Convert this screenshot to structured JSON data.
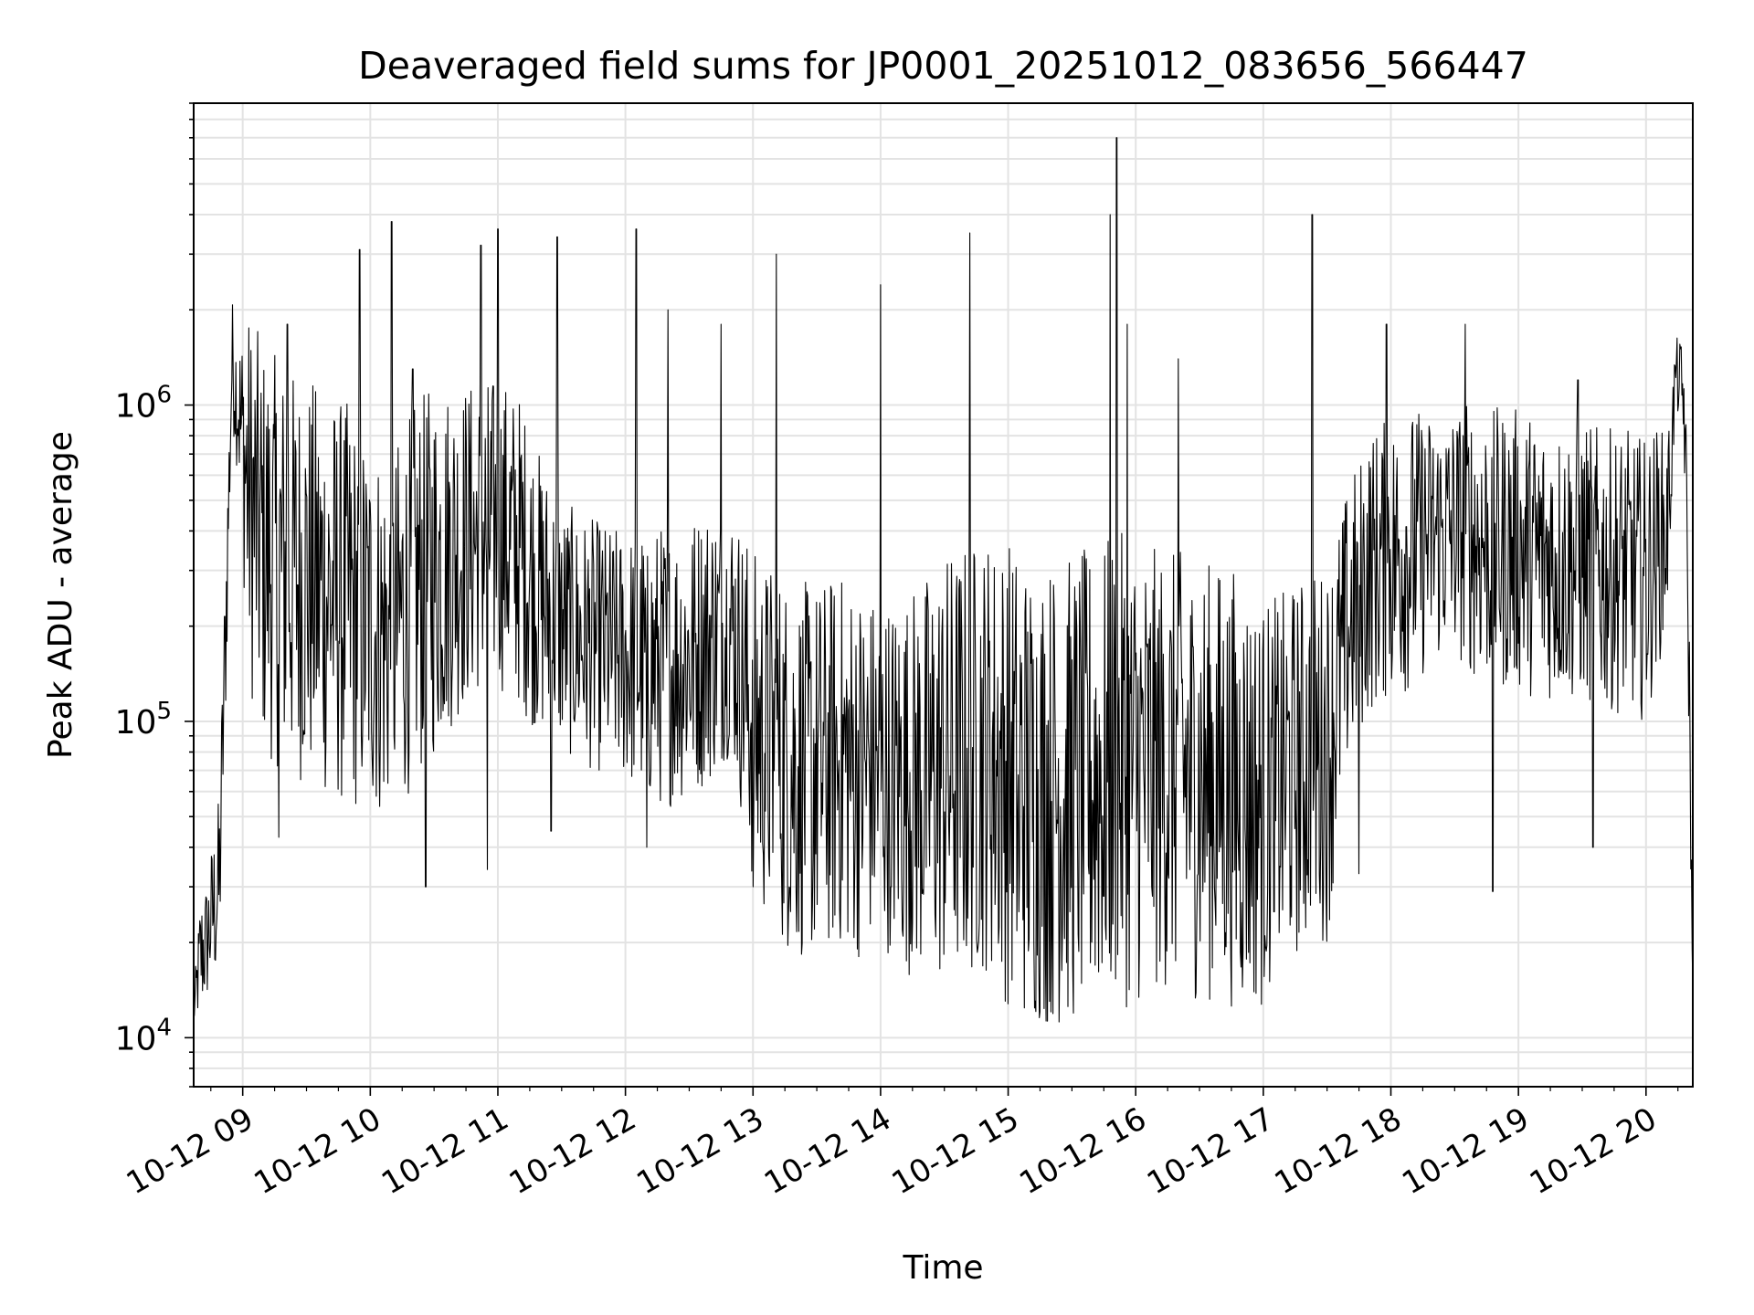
{
  "chart_data": {
    "type": "line",
    "title": "Deaveraged field sums for JP0001_20251012_083656_566447",
    "xlabel": "Time",
    "ylabel": "Peak ADU - average",
    "x_start": "2025-10-12 08:36:56",
    "x_end": "2025-10-12 20:22:00",
    "xlim": [
      "2025-10-12 08:36:56",
      "2025-10-12 20:22:00"
    ],
    "x_tick_labels": [
      "10-12 09",
      "10-12 10",
      "10-12 11",
      "10-12 12",
      "10-12 13",
      "10-12 14",
      "10-12 15",
      "10-12 16",
      "10-12 17",
      "10-12 18",
      "10-12 19",
      "10-12 20"
    ],
    "y_scale": "log",
    "ylim": [
      7000,
      9000000
    ],
    "y_tick_labels": [
      {
        "value": 10000,
        "base": "10",
        "exp": "4"
      },
      {
        "value": 100000,
        "base": "10",
        "exp": "5"
      },
      {
        "value": 1000000,
        "base": "10",
        "exp": "6"
      }
    ],
    "grid": true,
    "line_color": "#000000",
    "series": [
      {
        "x": [
          "2025-10-12 08:37",
          "2025-10-12 08:40",
          "2025-10-12 08:43",
          "2025-10-12 08:46",
          "2025-10-12 08:49",
          "2025-10-12 08:52",
          "2025-10-12 08:55",
          "2025-10-12 08:58",
          "2025-10-12 09:03",
          "2025-10-12 09:10",
          "2025-10-12 09:20",
          "2025-10-12 09:30",
          "2025-10-12 09:40",
          "2025-10-12 09:50",
          "2025-10-12 10:00",
          "2025-10-12 10:10",
          "2025-10-12 10:20",
          "2025-10-12 10:30",
          "2025-10-12 10:40",
          "2025-10-12 10:50",
          "2025-10-12 11:00",
          "2025-10-12 11:10",
          "2025-10-12 11:20",
          "2025-10-12 11:30",
          "2025-10-12 11:40",
          "2025-10-12 11:50",
          "2025-10-12 12:00",
          "2025-10-12 12:10",
          "2025-10-12 12:20",
          "2025-10-12 12:30",
          "2025-10-12 12:40",
          "2025-10-12 12:50",
          "2025-10-12 13:00",
          "2025-10-12 13:10",
          "2025-10-12 13:20",
          "2025-10-12 13:30",
          "2025-10-12 13:40",
          "2025-10-12 13:50",
          "2025-10-12 14:00",
          "2025-10-12 14:10",
          "2025-10-12 14:20",
          "2025-10-12 14:30",
          "2025-10-12 14:40",
          "2025-10-12 14:50",
          "2025-10-12 15:00",
          "2025-10-12 15:10",
          "2025-10-12 15:20",
          "2025-10-12 15:30",
          "2025-10-12 15:40",
          "2025-10-12 15:50",
          "2025-10-12 16:00",
          "2025-10-12 16:10",
          "2025-10-12 16:20",
          "2025-10-12 16:30",
          "2025-10-12 16:40",
          "2025-10-12 16:50",
          "2025-10-12 17:00",
          "2025-10-12 17:10",
          "2025-10-12 17:20",
          "2025-10-12 17:30",
          "2025-10-12 17:40",
          "2025-10-12 17:50",
          "2025-10-12 18:00",
          "2025-10-12 18:10",
          "2025-10-12 18:20",
          "2025-10-12 18:30",
          "2025-10-12 18:40",
          "2025-10-12 18:50",
          "2025-10-12 19:00",
          "2025-10-12 19:10",
          "2025-10-12 19:20",
          "2025-10-12 19:30",
          "2025-10-12 19:40",
          "2025-10-12 19:50",
          "2025-10-12 20:00",
          "2025-10-12 20:05",
          "2025-10-12 20:10",
          "2025-10-12 20:14",
          "2025-10-12 20:18",
          "2025-10-12 20:20",
          "2025-10-12 20:22"
        ],
        "center": [
          12000,
          18000,
          20000,
          25000,
          30000,
          200000,
          1400000,
          1000000,
          500000,
          350000,
          300000,
          280000,
          250000,
          230000,
          200000,
          180000,
          250000,
          300000,
          350000,
          380000,
          400000,
          350000,
          250000,
          200000,
          180000,
          170000,
          160000,
          150000,
          150000,
          160000,
          180000,
          200000,
          100000,
          80000,
          70000,
          70000,
          75000,
          70000,
          70000,
          65000,
          65000,
          70000,
          75000,
          80000,
          70000,
          60000,
          60000,
          60000,
          65000,
          70000,
          70000,
          70000,
          70000,
          65000,
          65000,
          60000,
          55000,
          65000,
          75000,
          80000,
          200000,
          300000,
          330000,
          350000,
          380000,
          400000,
          380000,
          350000,
          350000,
          330000,
          320000,
          320000,
          300000,
          300000,
          280000,
          350000,
          400000,
          1300000,
          1000000,
          200000,
          13000
        ],
        "amplitude": [
          0.05,
          0.2,
          0.2,
          0.25,
          0.3,
          0.3,
          0.2,
          0.25,
          0.6,
          0.65,
          0.65,
          0.65,
          0.65,
          0.65,
          0.6,
          0.6,
          0.6,
          0.6,
          0.55,
          0.5,
          0.5,
          0.5,
          0.45,
          0.4,
          0.4,
          0.4,
          0.4,
          0.45,
          0.45,
          0.45,
          0.45,
          0.4,
          0.55,
          0.6,
          0.6,
          0.6,
          0.6,
          0.6,
          0.55,
          0.6,
          0.65,
          0.7,
          0.7,
          0.7,
          0.75,
          0.75,
          0.75,
          0.75,
          0.75,
          0.75,
          0.75,
          0.7,
          0.7,
          0.7,
          0.7,
          0.7,
          0.65,
          0.6,
          0.6,
          0.6,
          0.45,
          0.45,
          0.45,
          0.45,
          0.4,
          0.4,
          0.45,
          0.45,
          0.45,
          0.45,
          0.45,
          0.45,
          0.45,
          0.45,
          0.45,
          0.4,
          0.3,
          0.1,
          0.2,
          0.3,
          0.05
        ]
      }
    ],
    "spikes": [
      {
        "x": "2025-10-12 09:21",
        "value": 1800000
      },
      {
        "x": "2025-10-12 09:55",
        "value": 3100000
      },
      {
        "x": "2025-10-12 10:10",
        "value": 3800000
      },
      {
        "x": "2025-10-12 10:20",
        "value": 1300000
      },
      {
        "x": "2025-10-12 10:52",
        "value": 3200000
      },
      {
        "x": "2025-10-12 11:00",
        "value": 3600000
      },
      {
        "x": "2025-10-12 11:28",
        "value": 3400000
      },
      {
        "x": "2025-10-12 12:05",
        "value": 3600000
      },
      {
        "x": "2025-10-12 12:20",
        "value": 2000000
      },
      {
        "x": "2025-10-12 12:45",
        "value": 1800000
      },
      {
        "x": "2025-10-12 13:11",
        "value": 3000000
      },
      {
        "x": "2025-10-12 14:00",
        "value": 2400000
      },
      {
        "x": "2025-10-12 14:42",
        "value": 3500000
      },
      {
        "x": "2025-10-12 15:48",
        "value": 4000000
      },
      {
        "x": "2025-10-12 15:51",
        "value": 7000000
      },
      {
        "x": "2025-10-12 15:56",
        "value": 1800000
      },
      {
        "x": "2025-10-12 16:20",
        "value": 1400000
      },
      {
        "x": "2025-10-12 17:23",
        "value": 4000000
      },
      {
        "x": "2025-10-12 17:58",
        "value": 1800000
      },
      {
        "x": "2025-10-12 18:35",
        "value": 1800000
      },
      {
        "x": "2025-10-12 19:28",
        "value": 1200000
      }
    ],
    "dips": [
      {
        "x": "2025-10-12 09:17",
        "value": 43000
      },
      {
        "x": "2025-10-12 10:26",
        "value": 30000
      },
      {
        "x": "2025-10-12 10:55",
        "value": 34000
      },
      {
        "x": "2025-10-12 11:25",
        "value": 45000
      },
      {
        "x": "2025-10-12 12:10",
        "value": 40000
      },
      {
        "x": "2025-10-12 13:00",
        "value": 30000
      },
      {
        "x": "2025-10-12 13:28",
        "value": 26000
      },
      {
        "x": "2025-10-12 14:05",
        "value": 30000
      },
      {
        "x": "2025-10-12 15:05",
        "value": 25000
      },
      {
        "x": "2025-10-12 15:45",
        "value": 28000
      },
      {
        "x": "2025-10-12 17:05",
        "value": 25000
      },
      {
        "x": "2025-10-12 17:45",
        "value": 33000
      },
      {
        "x": "2025-10-12 18:48",
        "value": 29000
      },
      {
        "x": "2025-10-12 19:35",
        "value": 40000
      }
    ]
  }
}
